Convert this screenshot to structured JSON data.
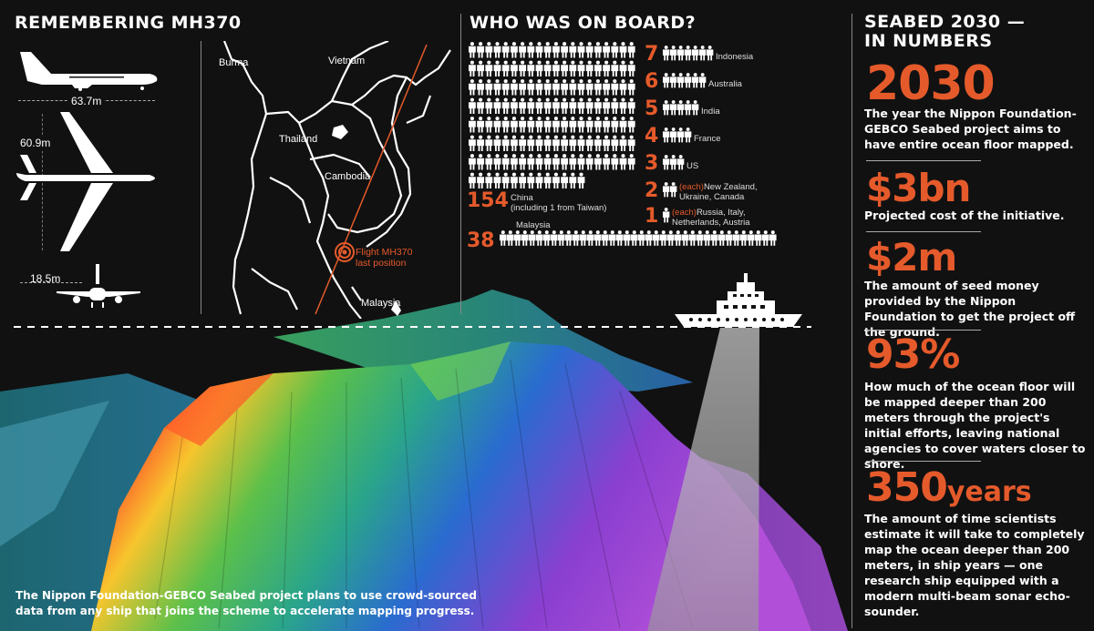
{
  "sections": {
    "remembering": "REMEMBERING MH370",
    "who": "WHO WAS ON BOARD?",
    "seabed": [
      "SEABED 2030 —",
      "IN NUMBERS"
    ]
  },
  "plane": {
    "wingspan": "63.7m",
    "length": "60.9m",
    "height": "18.5m"
  },
  "map": {
    "labels": [
      "Burma",
      "Vietnam",
      "Thailand",
      "Cambodia",
      "Malaysia"
    ],
    "flight": [
      "Flight MH370",
      "last position"
    ]
  },
  "passengers": {
    "china": {
      "count": "154",
      "name": "China",
      "note": "(including 1 from Taiwan)"
    },
    "malaysia": {
      "count": "38",
      "name": "Malaysia"
    },
    "rows": [
      {
        "count": "7",
        "each": "",
        "name": "Indonesia"
      },
      {
        "count": "6",
        "each": "",
        "name": "Australia"
      },
      {
        "count": "5",
        "each": "",
        "name": "India"
      },
      {
        "count": "4",
        "each": "",
        "name": "France"
      },
      {
        "count": "3",
        "each": "",
        "name": "US"
      },
      {
        "count": "2",
        "each": "(each)",
        "name": "New Zealand, Ukraine, Canada"
      },
      {
        "count": "1",
        "each": "(each)",
        "name": "Russia, Italy, Netherlands, Austria"
      }
    ]
  },
  "stats": [
    {
      "value": "2030",
      "unit": "",
      "desc": "The year the Nippon Foundation-GEBCO Seabed project aims to have entire ocean floor mapped."
    },
    {
      "value": "$3bn",
      "unit": "",
      "desc": "Projected cost of the initiative."
    },
    {
      "value": "$2m",
      "unit": "",
      "desc": "The amount of seed money provided by the Nippon Foundation to get the project off the ground."
    },
    {
      "value": "93%",
      "unit": "",
      "desc": "How much of the ocean floor will be mapped deeper than 200 meters through the project's initial efforts, leaving national agencies to cover waters closer to shore."
    },
    {
      "value": "350",
      "unit": "years",
      "desc": "The amount of time scientists estimate it will take to completely map the ocean deeper than 200 meters, in ship years — one research ship equipped with a modern multi-beam sonar echo-sounder."
    }
  ],
  "caption": "The Nippon Foundation-GEBCO Seabed project plans to use crowd-sourced data from any ship that joins the scheme to accelerate mapping progress.",
  "colors": {
    "accent": "#e55a2b",
    "background": "#111111"
  }
}
